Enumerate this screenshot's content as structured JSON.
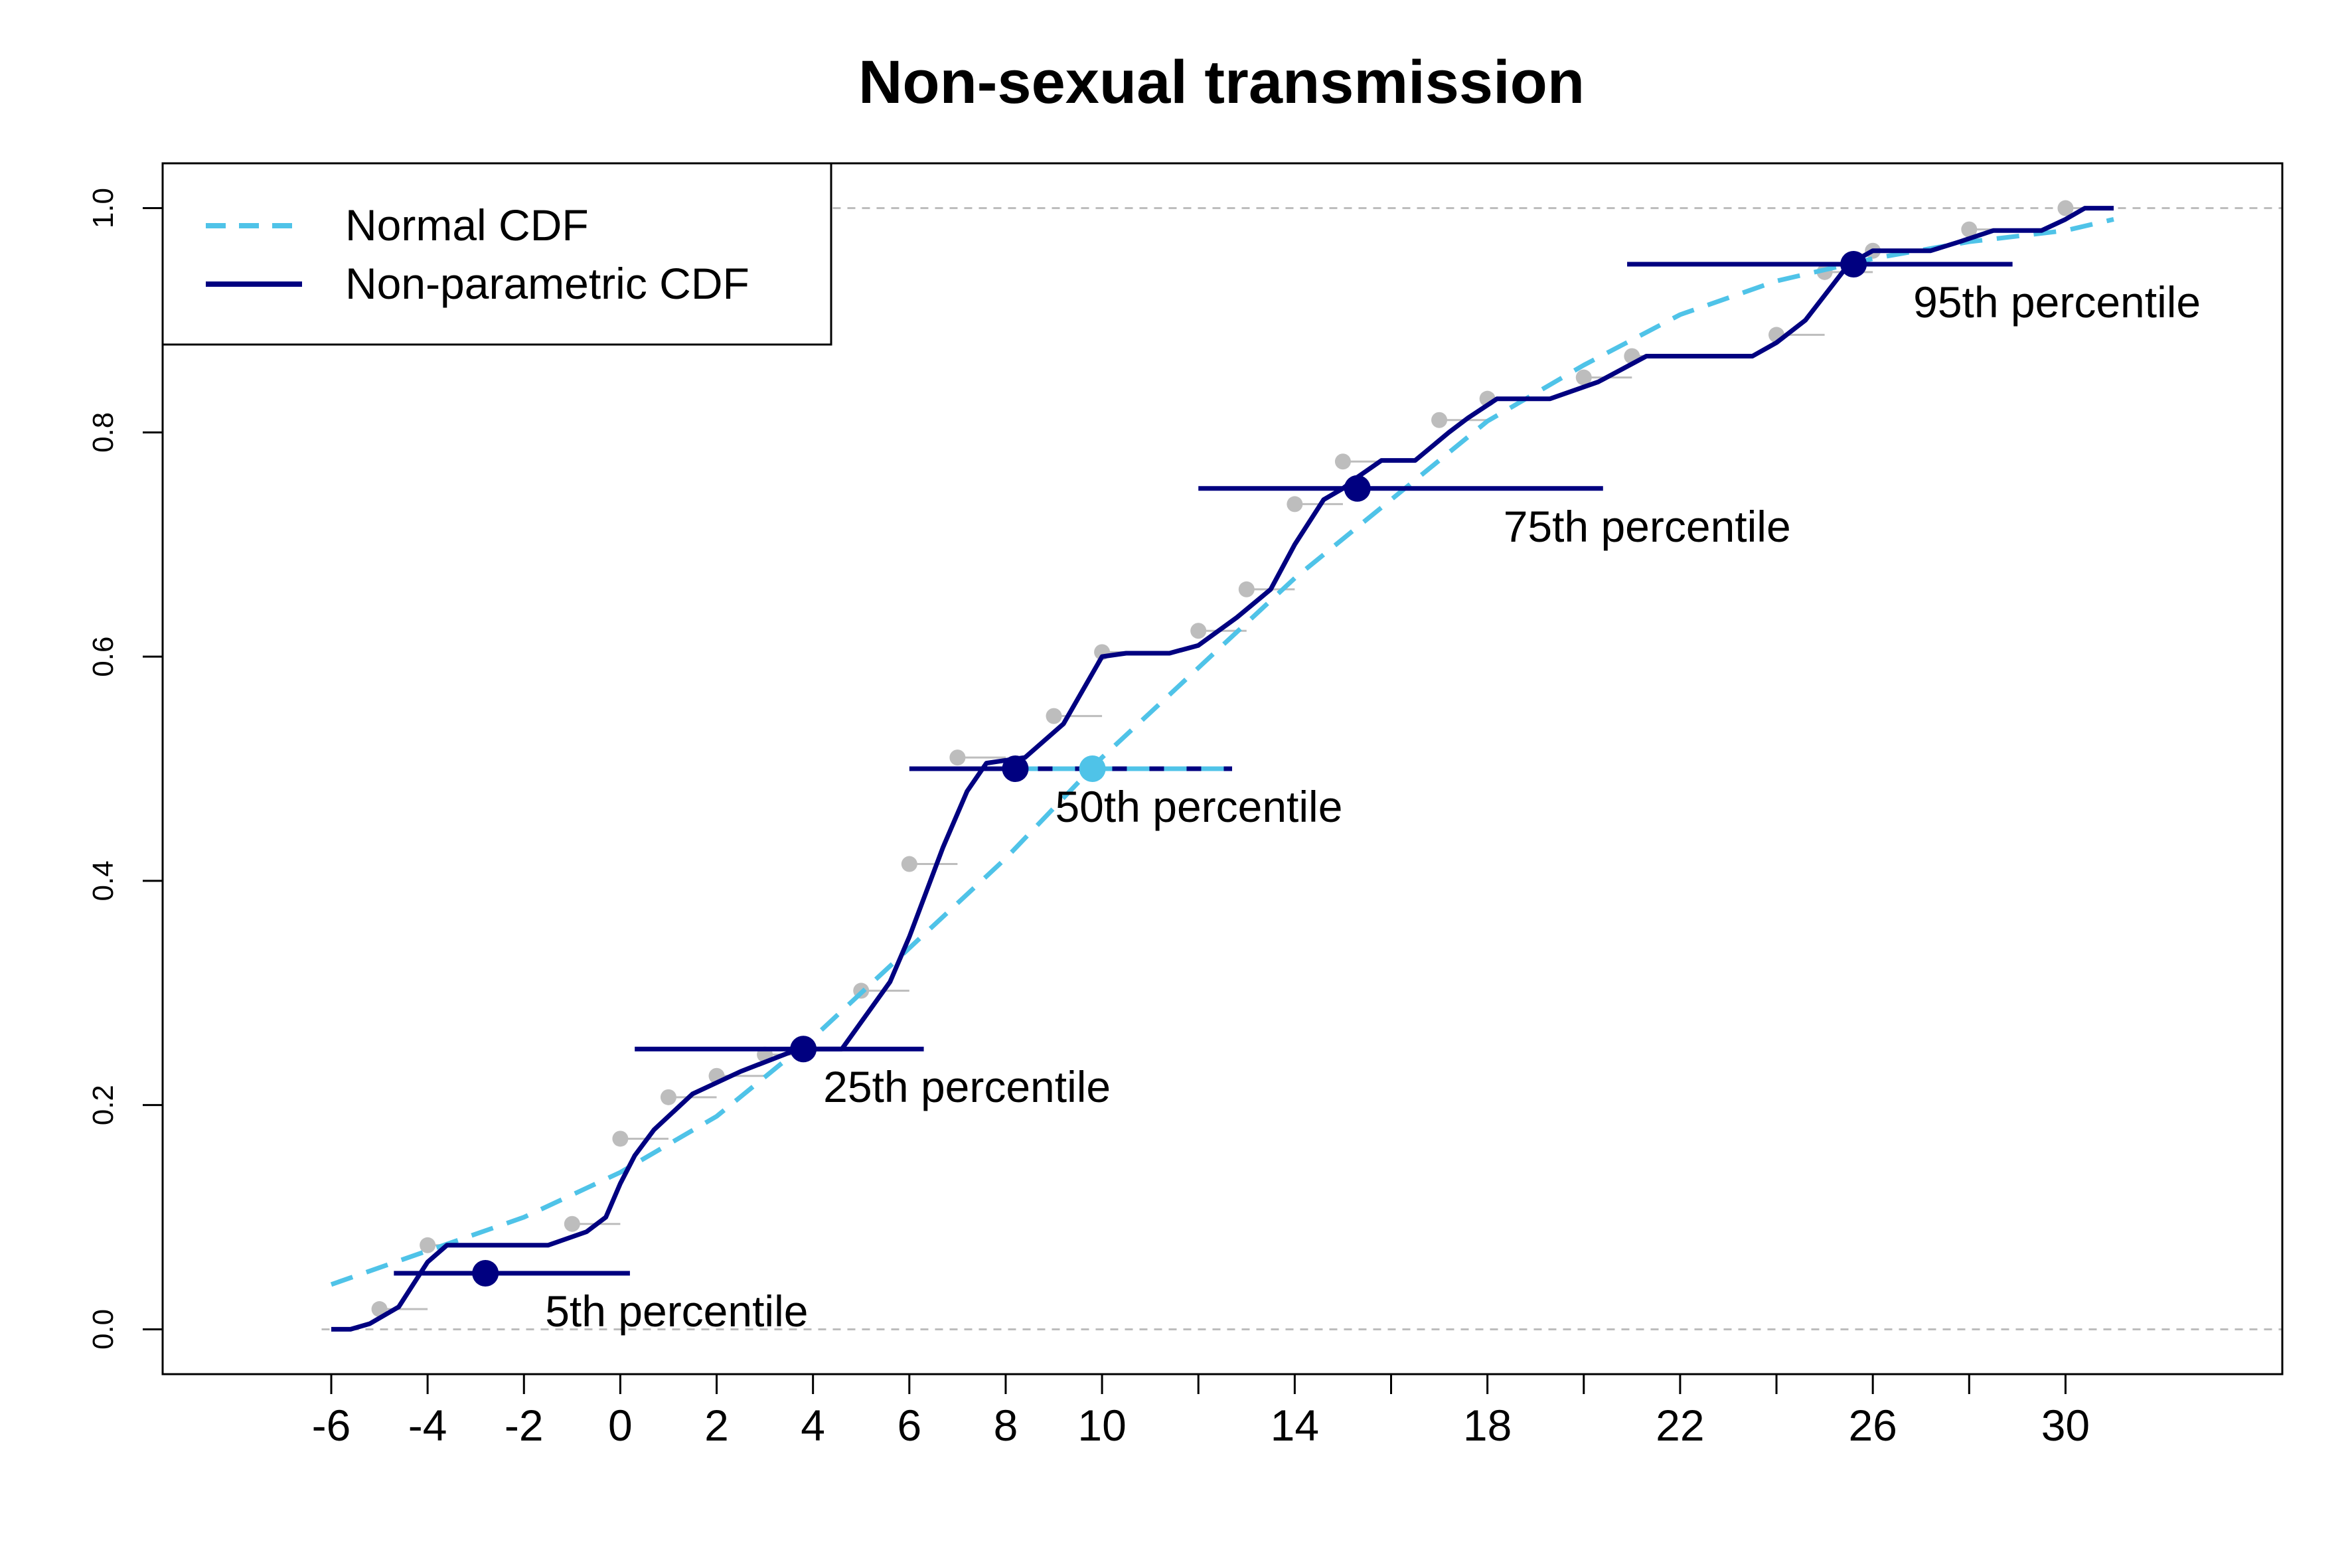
{
  "chart_data": {
    "type": "line",
    "title": "Non-sexual transmission",
    "xlabel": "",
    "ylabel": "",
    "xlim": [
      -9.5,
      34.5
    ],
    "ylim": [
      -0.04,
      1.04
    ],
    "x_ticks": [
      -6,
      -4,
      -2,
      0,
      2,
      4,
      6,
      8,
      10,
      12,
      14,
      16,
      18,
      20,
      22,
      24,
      26,
      28,
      30
    ],
    "x_tick_labels": [
      "-6",
      "-4",
      "-2",
      "0",
      "2",
      "4",
      "6",
      "8",
      "10",
      "",
      "14",
      "",
      "18",
      "",
      "22",
      "",
      "26",
      "",
      "30"
    ],
    "y_ticks": [
      0.0,
      0.2,
      0.4,
      0.6,
      0.8,
      1.0
    ],
    "y_tick_labels": [
      "0.0",
      "0.2",
      "0.4",
      "0.6",
      "0.8",
      "1.0"
    ],
    "reference_lines_y": [
      0.0,
      1.0
    ],
    "legend": {
      "position": "top-left",
      "entries": [
        {
          "label": "Normal CDF",
          "color": "#4fc3e8",
          "style": "dashed"
        },
        {
          "label": "Non-parametric CDF",
          "color": "#000080",
          "style": "solid"
        }
      ]
    },
    "series": [
      {
        "name": "Normal CDF",
        "color": "#4fc3e8",
        "style": "dashed",
        "x": [
          -6,
          -4,
          -2,
          0,
          2,
          4,
          6,
          8,
          10,
          12,
          14,
          16,
          18,
          20,
          22,
          24,
          26,
          28,
          30,
          31
        ],
        "y": [
          0.04,
          0.07,
          0.1,
          0.14,
          0.19,
          0.26,
          0.34,
          0.42,
          0.51,
          0.59,
          0.67,
          0.74,
          0.81,
          0.86,
          0.905,
          0.935,
          0.955,
          0.97,
          0.98,
          0.99
        ]
      },
      {
        "name": "Non-parametric CDF",
        "color": "#000080",
        "style": "solid",
        "x": [
          -6,
          -5.6,
          -5.2,
          -4.6,
          -4.0,
          -3.6,
          -3.4,
          -1.5,
          -0.7,
          -0.3,
          0,
          0.3,
          0.7,
          1.5,
          2.5,
          3.7,
          4.3,
          4.6,
          5.1,
          5.6,
          6.0,
          6.7,
          7.2,
          7.6,
          8.4,
          9.2,
          10.0,
          10.5,
          11.4,
          12.0,
          12.8,
          13.5,
          14.0,
          14.6,
          15.0,
          15.3,
          15.8,
          16.5,
          17.2,
          17.6,
          18.2,
          19.3,
          20.3,
          21.3,
          21.8,
          23.5,
          24.0,
          24.6,
          25.5,
          26.0,
          26.7,
          27.2,
          27.8,
          28.5,
          28.9,
          29.5,
          30.0,
          30.4,
          31.0
        ],
        "y": [
          0.0,
          0.0,
          0.005,
          0.02,
          0.06,
          0.075,
          0.075,
          0.075,
          0.087,
          0.1,
          0.13,
          0.155,
          0.178,
          0.21,
          0.23,
          0.25,
          0.25,
          0.25,
          0.28,
          0.31,
          0.35,
          0.43,
          0.48,
          0.505,
          0.51,
          0.54,
          0.6,
          0.603,
          0.603,
          0.61,
          0.635,
          0.66,
          0.7,
          0.74,
          0.75,
          0.76,
          0.775,
          0.775,
          0.8,
          0.813,
          0.83,
          0.83,
          0.845,
          0.868,
          0.868,
          0.868,
          0.88,
          0.9,
          0.95,
          0.962,
          0.962,
          0.962,
          0.97,
          0.98,
          0.98,
          0.98,
          0.99,
          1.0,
          1.0
        ]
      }
    ],
    "empirical_points": {
      "color": "#bdbdbd",
      "x": [
        -5,
        -4,
        -1,
        0,
        1,
        2,
        3,
        5,
        6,
        7,
        9,
        10,
        12,
        13,
        14,
        15,
        17,
        18,
        20,
        21,
        24,
        25,
        26,
        28,
        30
      ],
      "y": [
        0.018,
        0.075,
        0.094,
        0.17,
        0.207,
        0.226,
        0.245,
        0.302,
        0.415,
        0.51,
        0.547,
        0.604,
        0.623,
        0.66,
        0.736,
        0.774,
        0.811,
        0.83,
        0.849,
        0.868,
        0.887,
        0.943,
        0.962,
        0.981,
        1.0
      ]
    },
    "percentiles": [
      {
        "label": "5th percentile",
        "level": 0.05,
        "estimate": -2.8,
        "ci": [
          -4.7,
          0.2
        ]
      },
      {
        "label": "25th percentile",
        "level": 0.25,
        "estimate": 3.8,
        "ci": [
          0.3,
          6.3
        ]
      },
      {
        "label": "50th percentile",
        "level": 0.5,
        "estimate": 8.2,
        "ci": [
          6.0,
          12.7
        ],
        "normal_estimate": 9.8
      },
      {
        "label": "75th percentile",
        "level": 0.75,
        "estimate": 15.3,
        "ci": [
          12.0,
          20.4
        ]
      },
      {
        "label": "95th percentile",
        "level": 0.95,
        "estimate": 25.6,
        "ci": [
          20.9,
          28.9
        ]
      }
    ]
  }
}
